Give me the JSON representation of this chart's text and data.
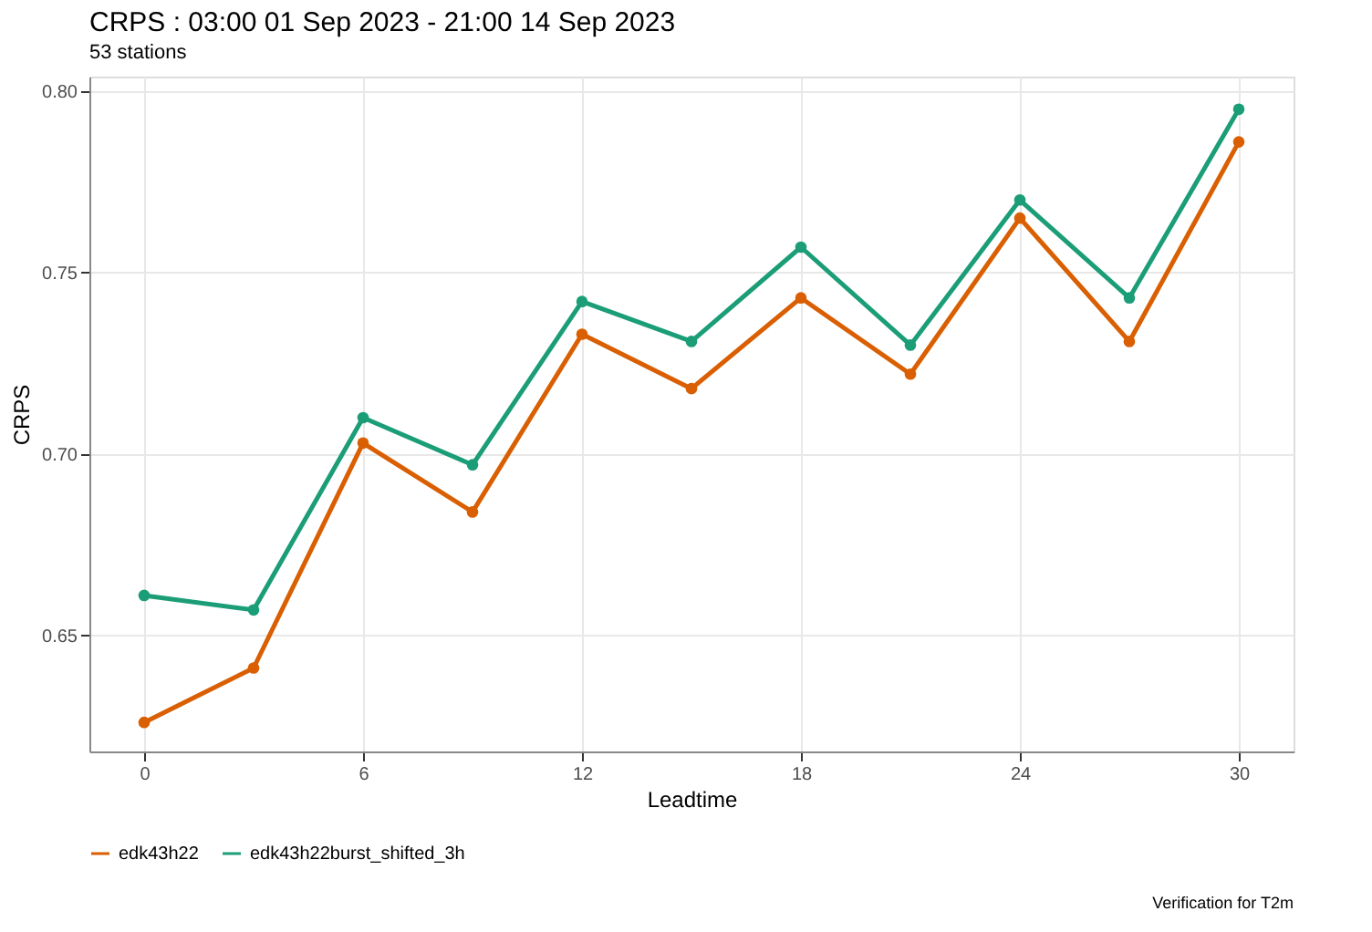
{
  "chart_data": {
    "type": "line",
    "title": "CRPS : 03:00 01 Sep 2023 - 21:00 14 Sep 2023",
    "subtitle": "53 stations",
    "xlabel": "Leadtime",
    "ylabel": "CRPS",
    "x": [
      0,
      3,
      6,
      9,
      12,
      15,
      18,
      21,
      24,
      27,
      30
    ],
    "series": [
      {
        "name": "edk43h22",
        "color": "#d95f02",
        "values": [
          0.626,
          0.641,
          0.703,
          0.684,
          0.733,
          0.718,
          0.743,
          0.722,
          0.765,
          0.731,
          0.786
        ]
      },
      {
        "name": "edk43h22burst_shifted_3h",
        "color": "#1b9e77",
        "values": [
          0.661,
          0.657,
          0.71,
          0.697,
          0.742,
          0.731,
          0.757,
          0.73,
          0.77,
          0.743,
          0.795
        ]
      }
    ],
    "xlim": [
      -1.5,
      31.5
    ],
    "xticks": [
      0,
      6,
      12,
      18,
      24,
      30
    ],
    "ylim": [
      0.618,
      0.804
    ],
    "yticks": [
      {
        "value": 0.65,
        "label": "0.65"
      },
      {
        "value": 0.7,
        "label": "0.70"
      },
      {
        "value": 0.75,
        "label": "0.75"
      },
      {
        "value": 0.8,
        "label": "0.80"
      }
    ],
    "grid": true,
    "legend": "bottom",
    "marker": "circle",
    "line_style": "solid",
    "annotations": [
      "Verification for T2m"
    ]
  }
}
